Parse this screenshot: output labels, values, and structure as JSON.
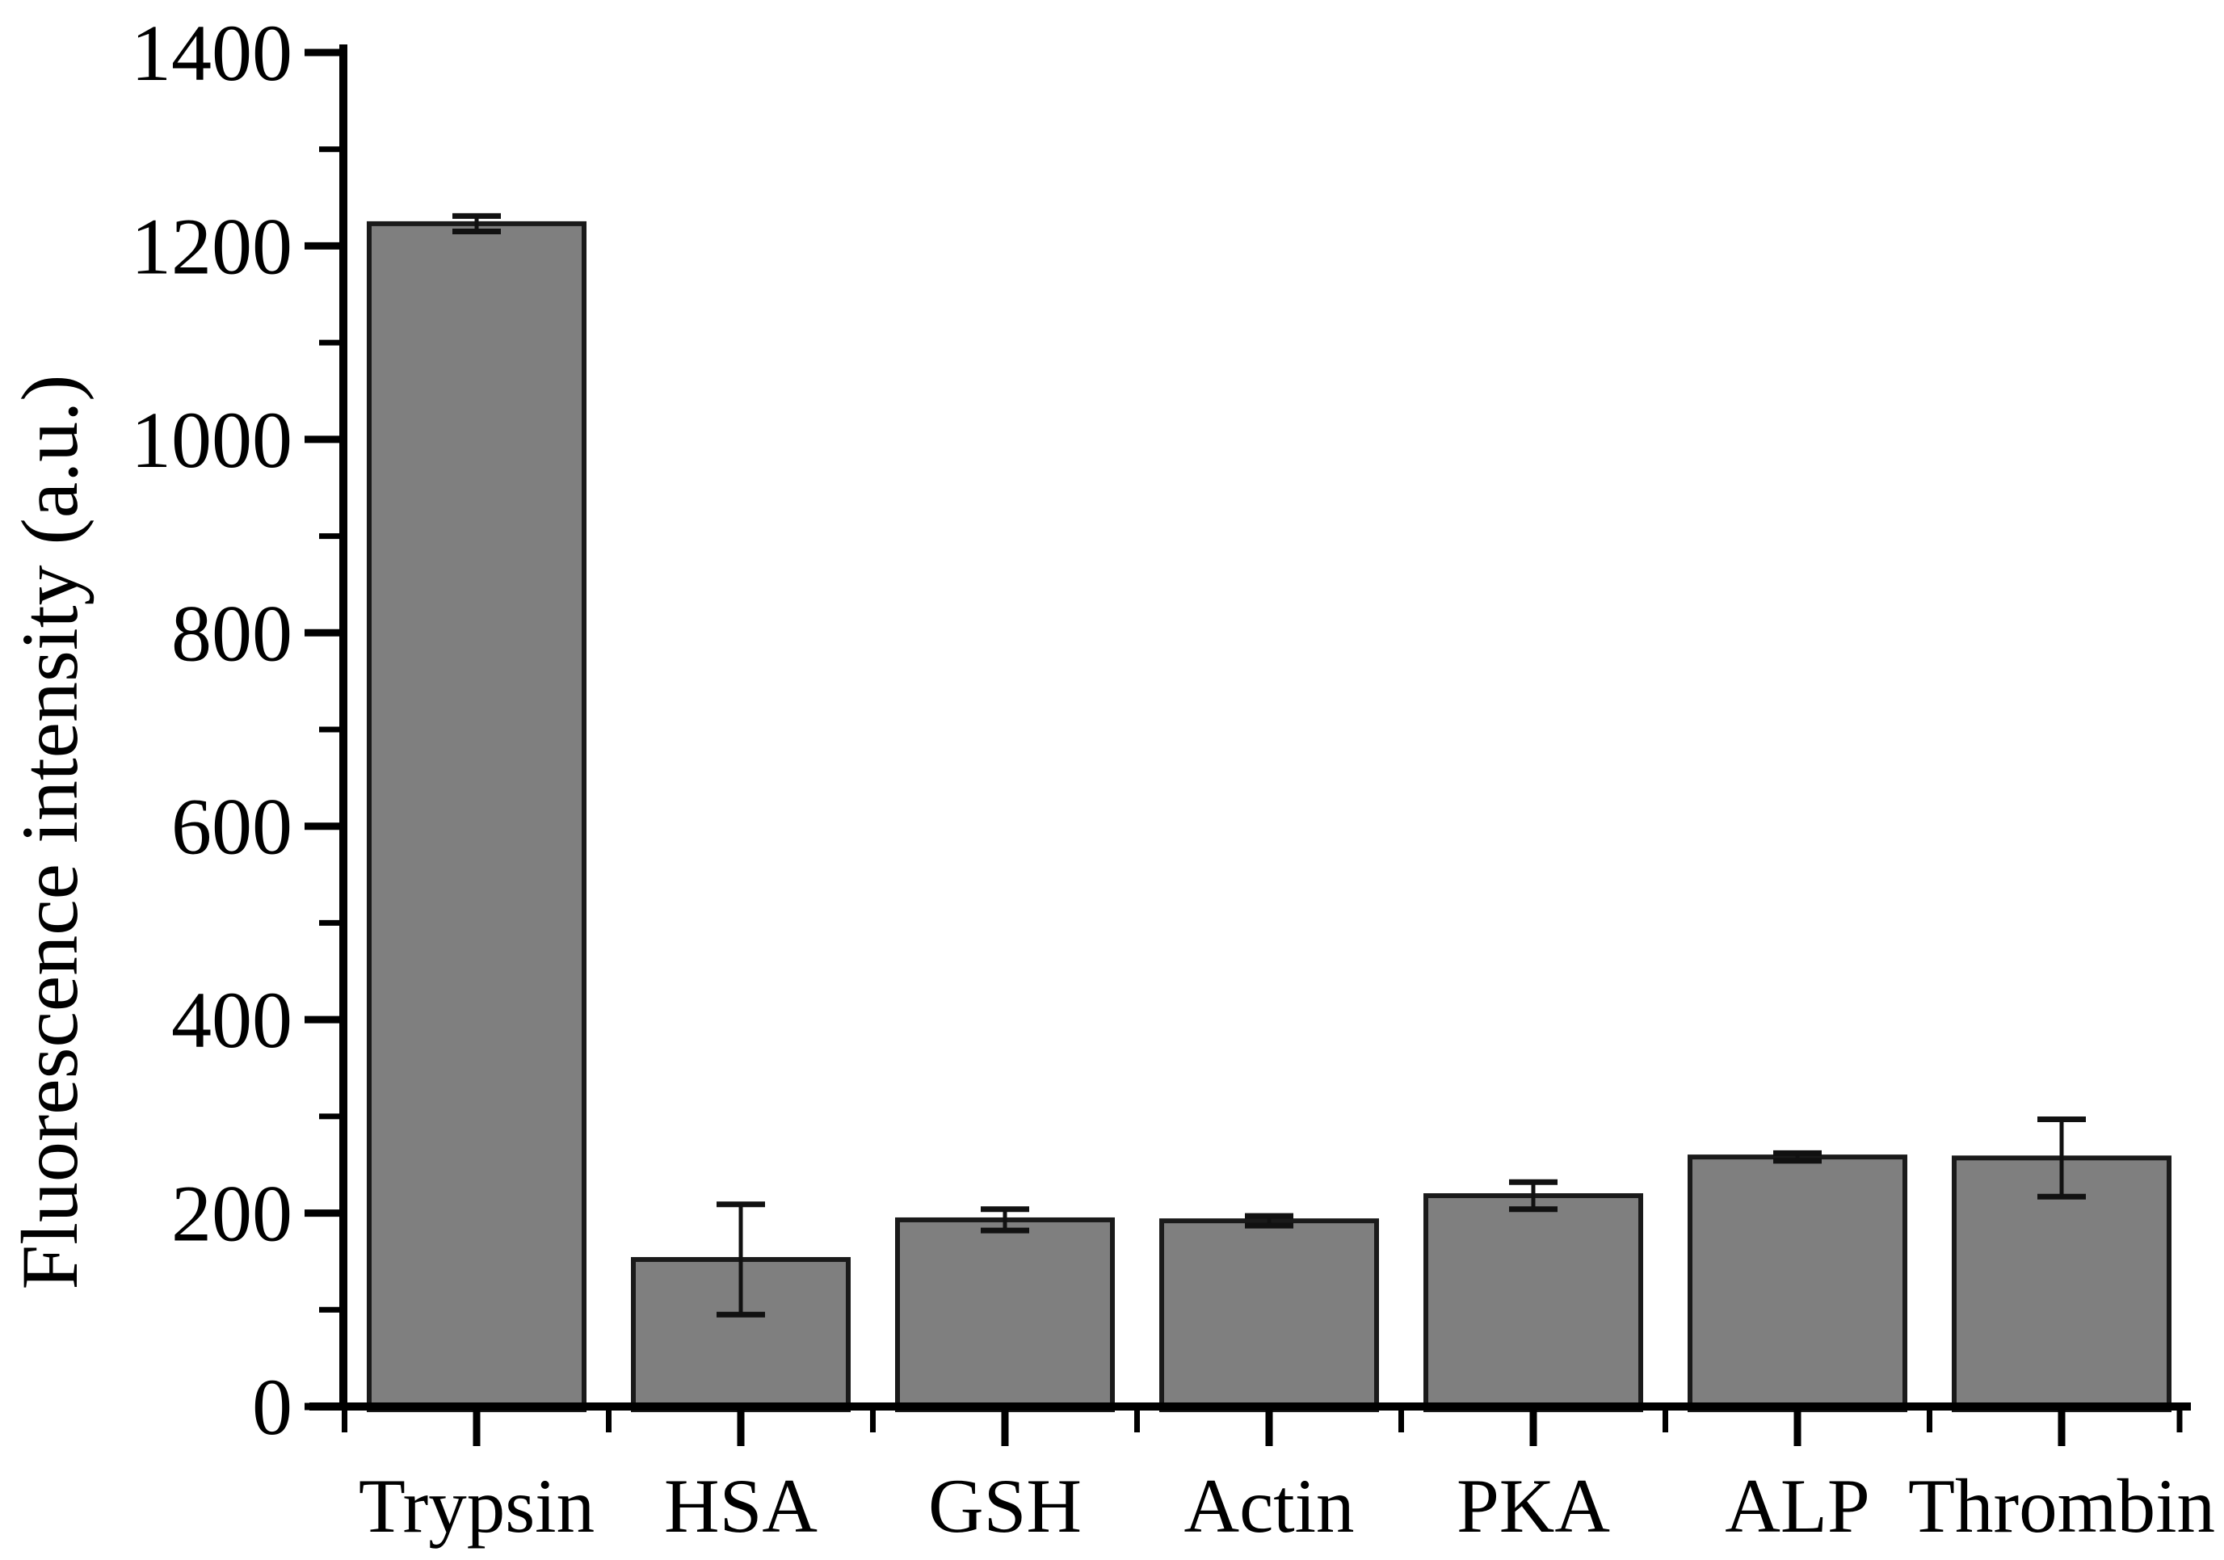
{
  "figure": {
    "background": "#ffffff",
    "axis_color": "#000000",
    "text_color": "#000000"
  },
  "chart_data": {
    "type": "bar",
    "title": "",
    "xlabel": "",
    "ylabel": "Fluorescence intensity (a.u.)",
    "categories": [
      "Trypsin",
      "HSA",
      "GSH",
      "Actin",
      "PKA",
      "ALP",
      "Thrombin"
    ],
    "values": [
      1223,
      152,
      193,
      192,
      218,
      258,
      257
    ],
    "errors": [
      8,
      57,
      11,
      5,
      14,
      4,
      40
    ],
    "error_bars": true,
    "bar_color": "#7f7f7f",
    "bar_edge_color": "#1a1a1a",
    "error_bar_color": "#111111",
    "ylim": [
      0,
      1400
    ],
    "yticks": [
      0,
      200,
      400,
      600,
      800,
      1000,
      1200,
      1400
    ],
    "minor_yticks": [
      100,
      300,
      500,
      700,
      900,
      1100,
      1300
    ],
    "grid": false,
    "legend": null
  }
}
